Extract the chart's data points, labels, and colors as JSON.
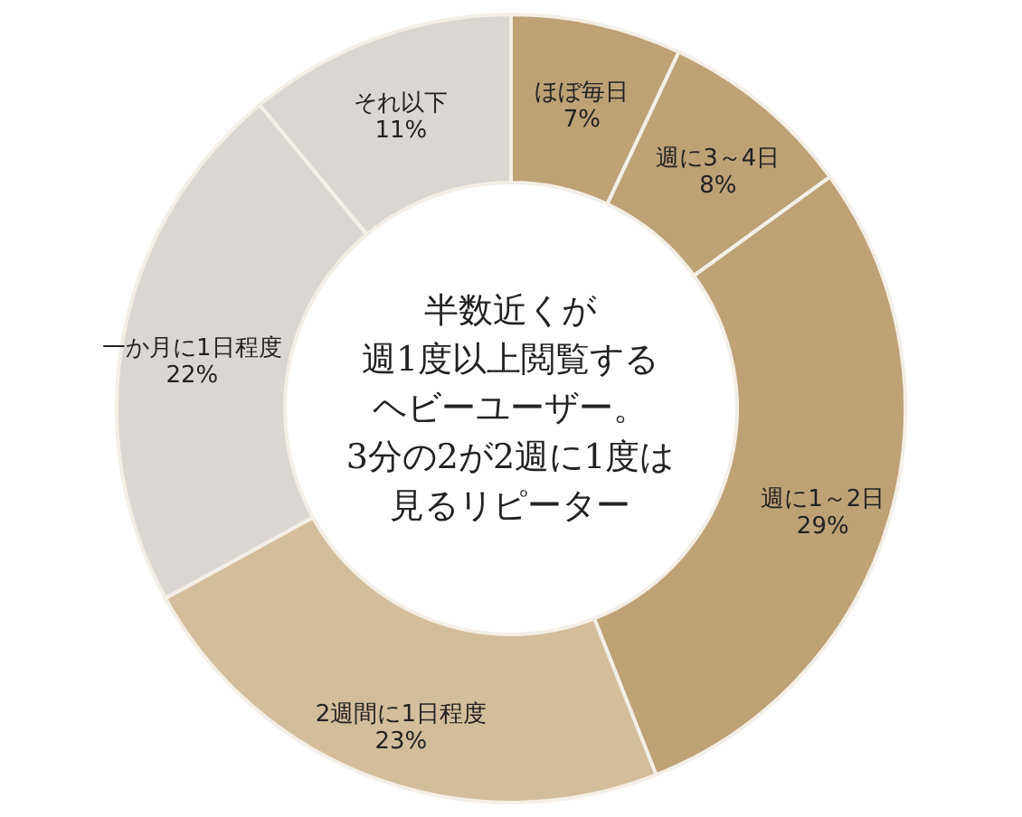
{
  "chart_data": {
    "type": "donut",
    "categories": [
      "ほぼ毎日",
      "週に3～4日",
      "週に1～2日",
      "2週間に1日程度",
      "一か月に1日程度",
      "それ以下"
    ],
    "values": [
      7,
      8,
      29,
      23,
      22,
      11
    ],
    "value_labels": [
      "7%",
      "8%",
      "29%",
      "23%",
      "22%",
      "11%"
    ],
    "colors": [
      "#bfa176",
      "#bfa176",
      "#bfa176",
      "#d4bd9a",
      "#dcd6d3",
      "#dcd6d3"
    ],
    "annotations": [
      "半数近くが",
      "週1度以上閲覧する",
      "ヘビーユーザー。",
      "3分の2が2週に1度は",
      "見るリピーター"
    ]
  }
}
